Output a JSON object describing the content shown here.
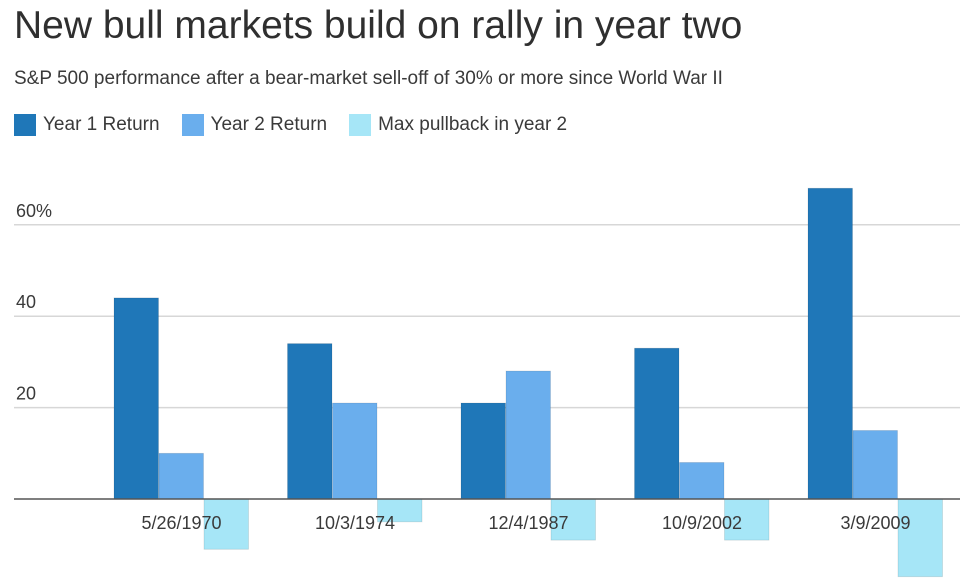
{
  "title": "New bull markets build on rally in year two",
  "subtitle": "S&P 500 performance after a bear-market sell-off of 30% or more since World War II",
  "legend": [
    {
      "label": "Year 1 Return",
      "color": "#1f77b8"
    },
    {
      "label": "Year 2 Return",
      "color": "#6aaeed"
    },
    {
      "label": "Max pullback in year 2",
      "color": "#a6e6f7"
    }
  ],
  "chart_data": {
    "type": "bar",
    "categories": [
      "5/26/1970",
      "10/3/1974",
      "12/4/1987",
      "10/9/2002",
      "3/9/2009"
    ],
    "series": [
      {
        "name": "Year 1 Return",
        "values": [
          44,
          34,
          21,
          33,
          68
        ]
      },
      {
        "name": "Year 2 Return",
        "values": [
          10,
          21,
          28,
          8,
          15
        ]
      },
      {
        "name": "Max pullback in year 2",
        "values": [
          -11,
          -5,
          -9,
          -9,
          -17
        ]
      }
    ],
    "yticks": [
      {
        "value": 20,
        "label": "20"
      },
      {
        "value": 40,
        "label": "40"
      },
      {
        "value": 60,
        "label": "60%"
      }
    ],
    "grid": true
  }
}
